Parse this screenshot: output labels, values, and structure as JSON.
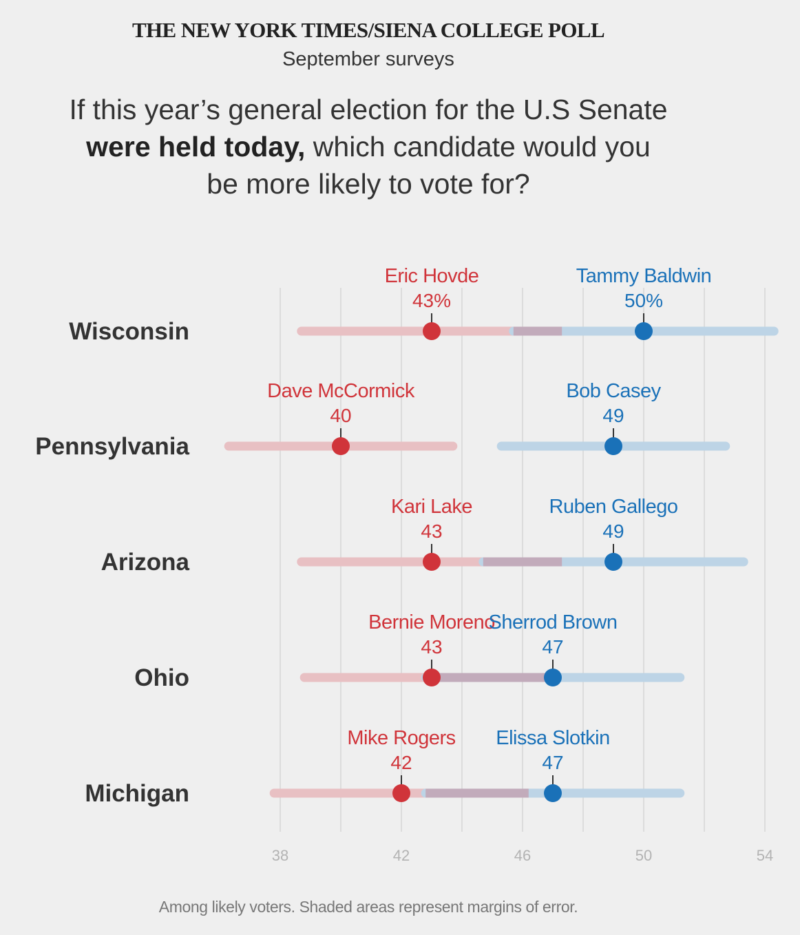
{
  "header": {
    "kicker": "THE NEW YORK TIMES/SIENA COLLEGE POLL",
    "subtitle": "September surveys",
    "question_line1": "If this year’s general election for the U.S Senate",
    "question_bold": "were held today,",
    "question_line2_rest": " which candidate would you",
    "question_line3": "be more likely to vote for?"
  },
  "footnote": "Among likely voters. Shaded areas represent margins of error.",
  "colors": {
    "republican": "#d0343a",
    "democrat": "#1a71b8",
    "rep_band": "#e8c0c3",
    "dem_band": "#bdd4e6",
    "overlap_band": "#c2abbb",
    "gridline": "#d6d6d6",
    "tick_label": "#b3b3b3"
  },
  "chart_data": {
    "type": "dot-range",
    "xlim": [
      38,
      54
    ],
    "xticks": [
      38,
      42,
      46,
      50,
      54
    ],
    "grid": true,
    "rows": [
      {
        "state": "Wisconsin",
        "rep": {
          "name": "Eric Hovde",
          "value": 43,
          "label": "43%",
          "low": 38.7,
          "high": 47.3
        },
        "dem": {
          "name": "Tammy Baldwin",
          "value": 50,
          "label": "50%",
          "low": 45.7,
          "high": 54.3
        }
      },
      {
        "state": "Pennsylvania",
        "rep": {
          "name": "Dave McCormick",
          "value": 40,
          "label": "40",
          "low": 36.3,
          "high": 43.7
        },
        "dem": {
          "name": "Bob Casey",
          "value": 49,
          "label": "49",
          "low": 45.3,
          "high": 52.7
        }
      },
      {
        "state": "Arizona",
        "rep": {
          "name": "Kari Lake",
          "value": 43,
          "label": "43",
          "low": 38.7,
          "high": 47.3
        },
        "dem": {
          "name": "Ruben Gallego",
          "value": 49,
          "label": "49",
          "low": 44.7,
          "high": 53.3
        }
      },
      {
        "state": "Ohio",
        "rep": {
          "name": "Bernie Moreno",
          "value": 43,
          "label": "43",
          "low": 38.8,
          "high": 47.2
        },
        "dem": {
          "name": "Sherrod Brown",
          "value": 47,
          "label": "47",
          "low": 42.8,
          "high": 51.2
        }
      },
      {
        "state": "Michigan",
        "rep": {
          "name": "Mike Rogers",
          "value": 42,
          "label": "42",
          "low": 37.8,
          "high": 46.2
        },
        "dem": {
          "name": "Elissa Slotkin",
          "value": 47,
          "label": "47",
          "low": 42.8,
          "high": 51.2
        }
      }
    ]
  }
}
